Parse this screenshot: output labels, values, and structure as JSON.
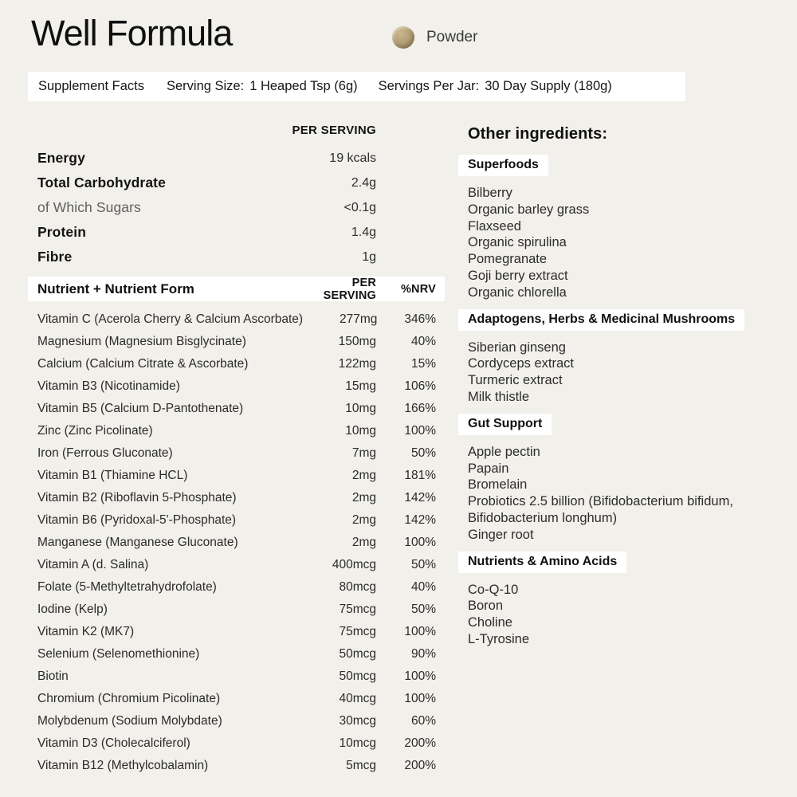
{
  "colors": {
    "background": "#f2f0eb",
    "panel": "#ffffff",
    "text": "#1a1a1a",
    "muted_text": "#5f5f5f",
    "powder_tan": "#ab9870"
  },
  "header": {
    "title": "Well Formula",
    "format_icon": "powder-icon",
    "format_label": "Powder"
  },
  "facts_bar": {
    "title": "Supplement Facts",
    "serving_size_label": "Serving Size:",
    "serving_size_value": "1 Heaped Tsp (6g)",
    "servings_per_jar_label": "Servings Per Jar:",
    "servings_per_jar_value": "30 Day Supply (180g)"
  },
  "macros": {
    "column_header": "PER SERVING",
    "rows": [
      {
        "label": "Energy",
        "value": "19 kcals",
        "muted": false
      },
      {
        "label": "Total Carbohydrate",
        "value": "2.4g",
        "muted": false
      },
      {
        "label": "of Which Sugars",
        "value": "<0.1g",
        "muted": true
      },
      {
        "label": "Protein",
        "value": "1.4g",
        "muted": false
      },
      {
        "label": "Fibre",
        "value": "1g",
        "muted": false
      }
    ]
  },
  "nutrient_table": {
    "headers": {
      "name": "Nutrient + Nutrient Form",
      "per_serving": "PER SERVING",
      "nrv": "%NRV"
    },
    "rows": [
      {
        "name": "Vitamin C (Acerola Cherry & Calcium Ascorbate)",
        "amount": "277mg",
        "nrv": "346%"
      },
      {
        "name": "Magnesium (Magnesium Bisglycinate)",
        "amount": "150mg",
        "nrv": "40%"
      },
      {
        "name": "Calcium (Calcium Citrate & Ascorbate)",
        "amount": "122mg",
        "nrv": "15%"
      },
      {
        "name": "Vitamin B3 (Nicotinamide)",
        "amount": "15mg",
        "nrv": "106%"
      },
      {
        "name": "Vitamin B5 (Calcium D-Pantothenate)",
        "amount": "10mg",
        "nrv": "166%"
      },
      {
        "name": "Zinc (Zinc Picolinate)",
        "amount": "10mg",
        "nrv": "100%"
      },
      {
        "name": "Iron (Ferrous Gluconate)",
        "amount": "7mg",
        "nrv": "50%"
      },
      {
        "name": "Vitamin B1 (Thiamine HCL)",
        "amount": "2mg",
        "nrv": "181%"
      },
      {
        "name": "Vitamin B2 (Riboflavin 5-Phosphate)",
        "amount": "2mg",
        "nrv": "142%"
      },
      {
        "name": "Vitamin B6 (Pyridoxal-5'-Phosphate)",
        "amount": "2mg",
        "nrv": "142%"
      },
      {
        "name": "Manganese (Manganese Gluconate)",
        "amount": "2mg",
        "nrv": "100%"
      },
      {
        "name": "Vitamin A (d. Salina)",
        "amount": "400mcg",
        "nrv": "50%"
      },
      {
        "name": "Folate (5-Methyltetrahydrofolate)",
        "amount": "80mcg",
        "nrv": "40%"
      },
      {
        "name": "Iodine (Kelp)",
        "amount": "75mcg",
        "nrv": "50%"
      },
      {
        "name": "Vitamin K2 (MK7)",
        "amount": "75mcg",
        "nrv": "100%"
      },
      {
        "name": "Selenium (Selenomethionine)",
        "amount": "50mcg",
        "nrv": "90%"
      },
      {
        "name": "Biotin",
        "amount": "50mcg",
        "nrv": "100%"
      },
      {
        "name": "Chromium (Chromium Picolinate)",
        "amount": "40mcg",
        "nrv": "100%"
      },
      {
        "name": "Molybdenum (Sodium Molybdate)",
        "amount": "30mcg",
        "nrv": "60%"
      },
      {
        "name": "Vitamin D3 (Cholecalciferol)",
        "amount": "10mcg",
        "nrv": "200%"
      },
      {
        "name": "Vitamin B12 (Methylcobalamin)",
        "amount": "5mcg",
        "nrv": "200%"
      }
    ]
  },
  "other_ingredients": {
    "heading": "Other ingredients:",
    "sections": [
      {
        "badge": "Superfoods",
        "items": [
          "Bilberry",
          "Organic barley grass",
          "Flaxseed",
          "Organic spirulina",
          "Pomegranate",
          "Goji berry extract",
          "Organic chlorella"
        ]
      },
      {
        "badge": "Adaptogens, Herbs & Medicinal Mushrooms",
        "items": [
          "Siberian ginseng",
          "Cordyceps extract",
          "Turmeric extract",
          "Milk thistle"
        ]
      },
      {
        "badge": "Gut Support",
        "items": [
          "Apple pectin",
          "Papain",
          "Bromelain",
          "Probiotics 2.5 billion (Bifidobacterium bifidum, Bifidobacterium longhum)",
          "Ginger root"
        ]
      },
      {
        "badge": "Nutrients & Amino Acids",
        "items": [
          "Co-Q-10",
          "Boron",
          "Choline",
          "L-Tyrosine"
        ]
      }
    ]
  }
}
